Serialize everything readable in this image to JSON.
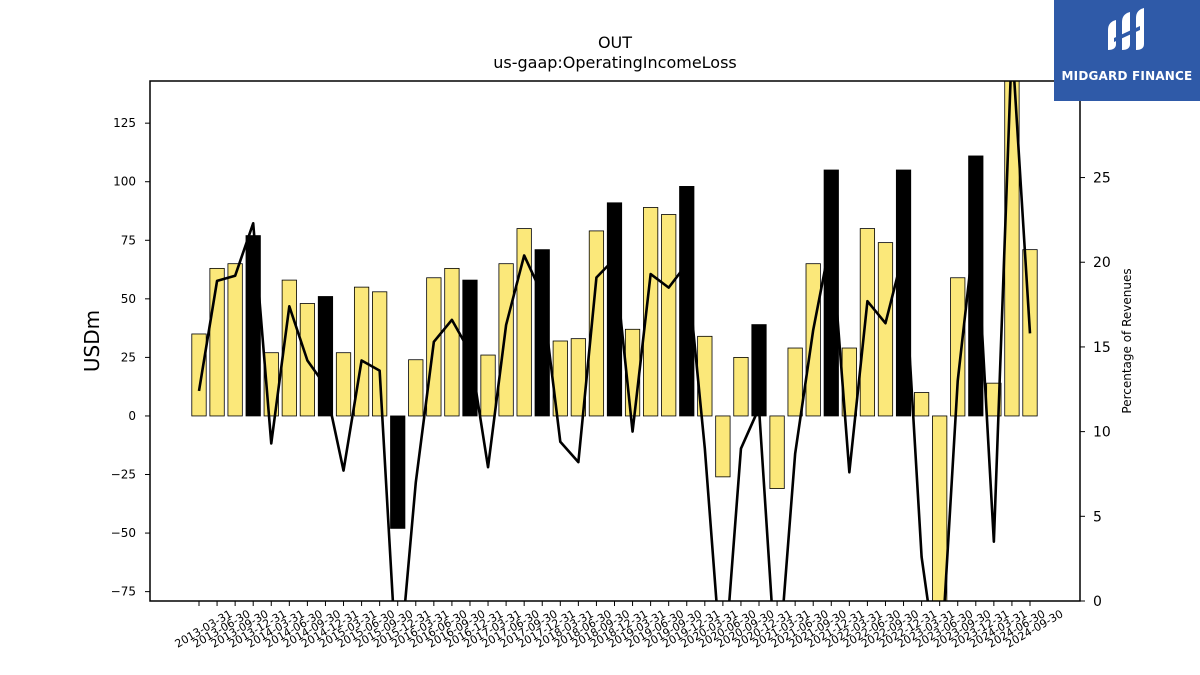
{
  "chart_data": {
    "type": "bar",
    "title": "OUT",
    "subtitle": "us-gaap:OperatingIncomeLoss",
    "ylabel": "USDm",
    "y2label": "Percentage of Revenues",
    "ylim": [
      -79,
      143
    ],
    "y2lim": [
      0,
      30.7
    ],
    "yticks": [
      -75,
      -50,
      -25,
      0,
      25,
      50,
      75,
      100,
      125
    ],
    "y2ticks": [
      0,
      5,
      10,
      15,
      20,
      25
    ],
    "categories": [
      "2013-03-31",
      "2013-06-30",
      "2013-09-30",
      "2013-12-31",
      "2014-03-31",
      "2014-06-30",
      "2014-09-30",
      "2014-12-31",
      "2015-03-31",
      "2015-06-30",
      "2015-09-30",
      "2015-12-31",
      "2016-03-31",
      "2016-06-30",
      "2016-09-30",
      "2016-12-31",
      "2017-03-31",
      "2017-06-30",
      "2017-09-30",
      "2017-12-31",
      "2018-03-31",
      "2018-06-30",
      "2018-09-30",
      "2018-12-31",
      "2019-03-31",
      "2019-06-30",
      "2019-09-30",
      "2019-12-31",
      "2020-03-31",
      "2020-06-30",
      "2020-09-30",
      "2020-12-31",
      "2021-03-31",
      "2021-06-30",
      "2021-09-30",
      "2021-12-31",
      "2022-03-31",
      "2022-06-30",
      "2022-09-30",
      "2022-12-31",
      "2023-03-31",
      "2023-06-30",
      "2023-09-30",
      "2023-12-31",
      "2024-03-31",
      "2024-06-30",
      "2024-09-30"
    ],
    "series": [
      {
        "kind": "bar",
        "values": [
          35,
          63,
          65,
          77,
          27,
          58,
          48,
          51,
          27,
          55,
          53,
          -48,
          24,
          59,
          63,
          58,
          26,
          65,
          80,
          71,
          32,
          33,
          79,
          91,
          37,
          89,
          86,
          98,
          34,
          -26,
          25,
          39,
          -31,
          29,
          65,
          105,
          29,
          80,
          74,
          105,
          10,
          -80,
          59,
          111,
          14,
          146,
          71
        ],
        "q4_flags": [
          false,
          false,
          false,
          true,
          false,
          false,
          false,
          true,
          false,
          false,
          false,
          true,
          false,
          false,
          false,
          true,
          false,
          false,
          false,
          true,
          false,
          false,
          false,
          true,
          false,
          false,
          false,
          true,
          false,
          false,
          false,
          true,
          false,
          false,
          false,
          true,
          false,
          false,
          false,
          true,
          false,
          false,
          false,
          true,
          false,
          false,
          false
        ],
        "colors": {
          "quarter": "#fbe87a",
          "q4": "#000000",
          "edge": "#000000"
        }
      },
      {
        "kind": "line",
        "axis": "right",
        "color": "#000000",
        "values": [
          12.4,
          18.9,
          19.2,
          22.3,
          9.3,
          17.4,
          14.2,
          12.7,
          7.7,
          14.2,
          13.6,
          -5,
          7,
          15.3,
          16.6,
          14.7,
          7.9,
          16.3,
          20.4,
          18.1,
          9.4,
          8.2,
          19.1,
          20.2,
          10,
          19.3,
          18.5,
          19.9,
          9,
          -5,
          9,
          11.4,
          -5,
          8.7,
          16,
          21.5,
          7.6,
          17.7,
          16.4,
          20.6,
          2.6,
          -5,
          13,
          22.5,
          3.5,
          33,
          15.8
        ]
      }
    ]
  },
  "logo": {
    "text": "MIDGARD FINANCE",
    "background": "#2f5aa8",
    "foreground": "#ffffff"
  }
}
